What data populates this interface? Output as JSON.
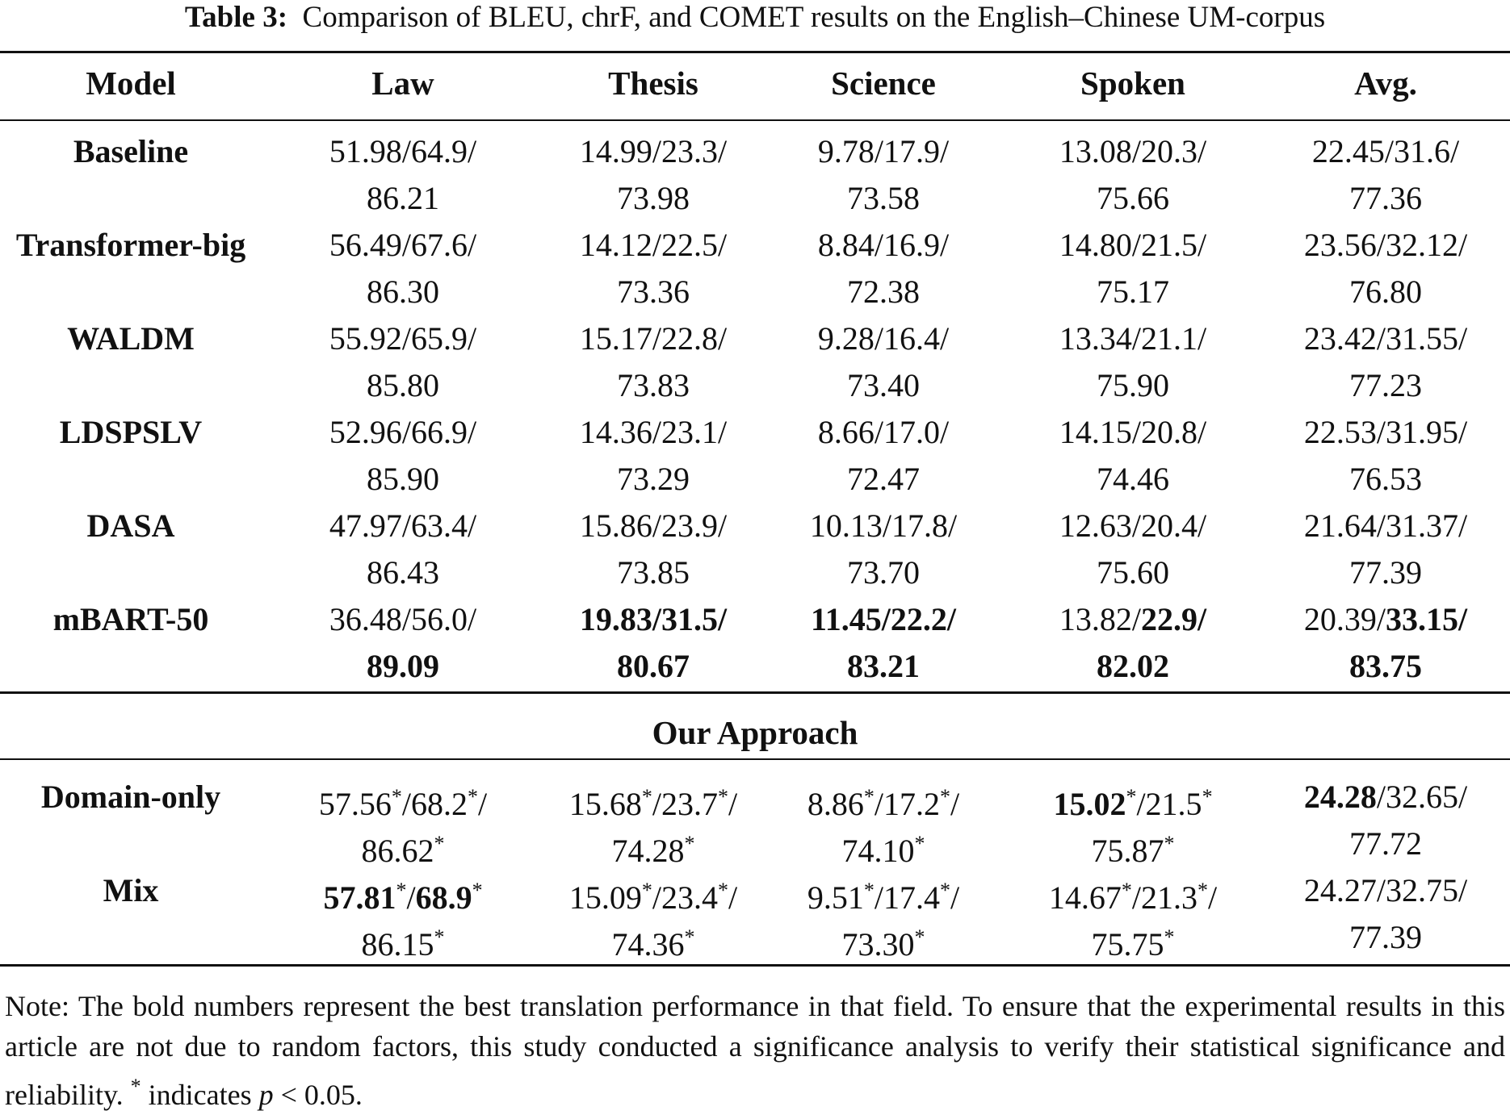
{
  "caption": {
    "label": "Table 3:",
    "text": "Comparison of BLEU, chrF, and COMET results on the English–Chinese UM-corpus"
  },
  "headers": [
    "Model",
    "Law",
    "Thesis",
    "Science",
    "Spoken",
    "Avg."
  ],
  "baseline_rows": [
    {
      "model": "Baseline",
      "cells": [
        {
          "l1": [
            {
              "t": "51.98/64.9/"
            }
          ],
          "l2": [
            {
              "t": "86.21"
            }
          ]
        },
        {
          "l1": [
            {
              "t": "14.99/23.3/"
            }
          ],
          "l2": [
            {
              "t": "73.98"
            }
          ]
        },
        {
          "l1": [
            {
              "t": "9.78/17.9/"
            }
          ],
          "l2": [
            {
              "t": "73.58"
            }
          ]
        },
        {
          "l1": [
            {
              "t": "13.08/20.3/"
            }
          ],
          "l2": [
            {
              "t": "75.66"
            }
          ]
        },
        {
          "l1": [
            {
              "t": "22.45/31.6/"
            }
          ],
          "l2": [
            {
              "t": "77.36"
            }
          ]
        }
      ]
    },
    {
      "model": "Transformer-big",
      "cells": [
        {
          "l1": [
            {
              "t": "56.49/67.6/"
            }
          ],
          "l2": [
            {
              "t": "86.30"
            }
          ]
        },
        {
          "l1": [
            {
              "t": "14.12/22.5/"
            }
          ],
          "l2": [
            {
              "t": "73.36"
            }
          ]
        },
        {
          "l1": [
            {
              "t": "8.84/16.9/"
            }
          ],
          "l2": [
            {
              "t": "72.38"
            }
          ]
        },
        {
          "l1": [
            {
              "t": "14.80/21.5/"
            }
          ],
          "l2": [
            {
              "t": "75.17"
            }
          ]
        },
        {
          "l1": [
            {
              "t": "23.56/32.12/"
            }
          ],
          "l2": [
            {
              "t": "76.80"
            }
          ]
        }
      ]
    },
    {
      "model": "WALDM",
      "cells": [
        {
          "l1": [
            {
              "t": "55.92/65.9/"
            }
          ],
          "l2": [
            {
              "t": "85.80"
            }
          ]
        },
        {
          "l1": [
            {
              "t": "15.17/22.8/"
            }
          ],
          "l2": [
            {
              "t": "73.83"
            }
          ]
        },
        {
          "l1": [
            {
              "t": "9.28/16.4/"
            }
          ],
          "l2": [
            {
              "t": "73.40"
            }
          ]
        },
        {
          "l1": [
            {
              "t": "13.34/21.1/"
            }
          ],
          "l2": [
            {
              "t": "75.90"
            }
          ]
        },
        {
          "l1": [
            {
              "t": "23.42/31.55/"
            }
          ],
          "l2": [
            {
              "t": "77.23"
            }
          ]
        }
      ]
    },
    {
      "model": "LDSPSLV",
      "cells": [
        {
          "l1": [
            {
              "t": "52.96/66.9/"
            }
          ],
          "l2": [
            {
              "t": "85.90"
            }
          ]
        },
        {
          "l1": [
            {
              "t": "14.36/23.1/"
            }
          ],
          "l2": [
            {
              "t": "73.29"
            }
          ]
        },
        {
          "l1": [
            {
              "t": "8.66/17.0/"
            }
          ],
          "l2": [
            {
              "t": "72.47"
            }
          ]
        },
        {
          "l1": [
            {
              "t": "14.15/20.8/"
            }
          ],
          "l2": [
            {
              "t": "74.46"
            }
          ]
        },
        {
          "l1": [
            {
              "t": "22.53/31.95/"
            }
          ],
          "l2": [
            {
              "t": "76.53"
            }
          ]
        }
      ]
    },
    {
      "model": "DASA",
      "cells": [
        {
          "l1": [
            {
              "t": "47.97/63.4/"
            }
          ],
          "l2": [
            {
              "t": "86.43"
            }
          ]
        },
        {
          "l1": [
            {
              "t": "15.86/23.9/"
            }
          ],
          "l2": [
            {
              "t": "73.85"
            }
          ]
        },
        {
          "l1": [
            {
              "t": "10.13/17.8/"
            }
          ],
          "l2": [
            {
              "t": "73.70"
            }
          ]
        },
        {
          "l1": [
            {
              "t": "12.63/20.4/"
            }
          ],
          "l2": [
            {
              "t": "75.60"
            }
          ]
        },
        {
          "l1": [
            {
              "t": "21.64/31.37/"
            }
          ],
          "l2": [
            {
              "t": "77.39"
            }
          ]
        }
      ]
    },
    {
      "model": "mBART-50",
      "cells": [
        {
          "l1": [
            {
              "t": "36.48/56.0/"
            }
          ],
          "l2": [
            {
              "t": "89.09",
              "b": true
            }
          ]
        },
        {
          "l1": [
            {
              "t": "19.83/31.5/",
              "b": true
            }
          ],
          "l2": [
            {
              "t": "80.67",
              "b": true
            }
          ]
        },
        {
          "l1": [
            {
              "t": "11.45/22.2/",
              "b": true
            }
          ],
          "l2": [
            {
              "t": "83.21",
              "b": true
            }
          ]
        },
        {
          "l1": [
            {
              "t": "13.82/"
            },
            {
              "t": "22.9/",
              "b": true
            }
          ],
          "l2": [
            {
              "t": "82.02",
              "b": true
            }
          ]
        },
        {
          "l1": [
            {
              "t": "20.39/"
            },
            {
              "t": "33.15/",
              "b": true
            }
          ],
          "l2": [
            {
              "t": "83.75",
              "b": true
            }
          ]
        }
      ]
    }
  ],
  "section_title": "Our Approach",
  "approach_rows": [
    {
      "model": "Domain-only",
      "cells": [
        {
          "l1": [
            {
              "t": "57.56"
            },
            {
              "t": "*",
              "s": true
            },
            {
              "t": "/68.2"
            },
            {
              "t": "*",
              "s": true
            },
            {
              "t": "/"
            }
          ],
          "l2": [
            {
              "t": "86.62"
            },
            {
              "t": "*",
              "s": true
            }
          ]
        },
        {
          "l1": [
            {
              "t": "15.68"
            },
            {
              "t": "*",
              "s": true
            },
            {
              "t": "/23.7"
            },
            {
              "t": "*",
              "s": true
            },
            {
              "t": "/"
            }
          ],
          "l2": [
            {
              "t": "74.28"
            },
            {
              "t": "*",
              "s": true
            }
          ]
        },
        {
          "l1": [
            {
              "t": "8.86"
            },
            {
              "t": "*",
              "s": true
            },
            {
              "t": "/17.2"
            },
            {
              "t": "*",
              "s": true
            },
            {
              "t": "/"
            }
          ],
          "l2": [
            {
              "t": "74.10"
            },
            {
              "t": "*",
              "s": true
            }
          ]
        },
        {
          "l1": [
            {
              "t": "15.02",
              "b": true
            },
            {
              "t": "*",
              "s": true
            },
            {
              "t": "/21.5"
            },
            {
              "t": "*",
              "s": true
            }
          ],
          "l2": [
            {
              "t": "75.87"
            },
            {
              "t": "*",
              "s": true
            }
          ]
        },
        {
          "l1": [
            {
              "t": "24.28",
              "b": true
            },
            {
              "t": "/32.65/"
            }
          ],
          "l2": [
            {
              "t": "77.72"
            }
          ]
        }
      ]
    },
    {
      "model": "Mix",
      "cells": [
        {
          "l1": [
            {
              "t": "57.81",
              "b": true
            },
            {
              "t": "*",
              "s": true
            },
            {
              "t": "/"
            },
            {
              "t": "68.9",
              "b": true
            },
            {
              "t": "*",
              "s": true
            }
          ],
          "l2": [
            {
              "t": "86.15"
            },
            {
              "t": "*",
              "s": true
            }
          ]
        },
        {
          "l1": [
            {
              "t": "15.09"
            },
            {
              "t": "*",
              "s": true
            },
            {
              "t": "/23.4"
            },
            {
              "t": "*",
              "s": true
            },
            {
              "t": "/"
            }
          ],
          "l2": [
            {
              "t": "74.36"
            },
            {
              "t": "*",
              "s": true
            }
          ]
        },
        {
          "l1": [
            {
              "t": "9.51"
            },
            {
              "t": "*",
              "s": true
            },
            {
              "t": "/17.4"
            },
            {
              "t": "*",
              "s": true
            },
            {
              "t": "/"
            }
          ],
          "l2": [
            {
              "t": "73.30"
            },
            {
              "t": "*",
              "s": true
            }
          ]
        },
        {
          "l1": [
            {
              "t": "14.67"
            },
            {
              "t": "*",
              "s": true
            },
            {
              "t": "/21.3"
            },
            {
              "t": "*",
              "s": true
            },
            {
              "t": "/"
            }
          ],
          "l2": [
            {
              "t": "75.75"
            },
            {
              "t": "*",
              "s": true
            }
          ]
        },
        {
          "l1": [
            {
              "t": "24.27/32.75/"
            }
          ],
          "l2": [
            {
              "t": "77.39"
            }
          ]
        }
      ]
    }
  ],
  "note": {
    "text_before": "Note: The bold numbers represent the best translation performance in that field. To ensure that the experimental results in this article are not due to random factors, this study conducted a significance analysis to verify their statistical significance and reliability. ",
    "star": "*",
    "text_mid": " indicates ",
    "p_var": "p",
    "text_after": " < 0.05."
  }
}
